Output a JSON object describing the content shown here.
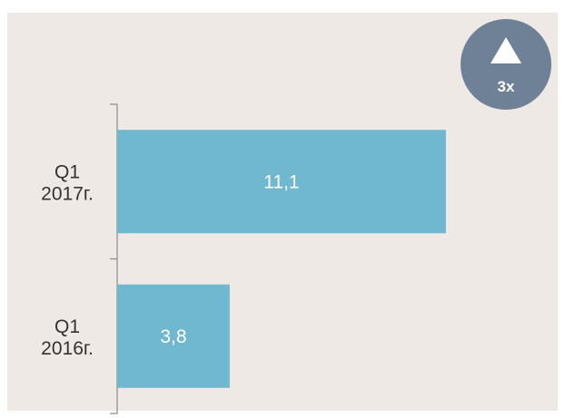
{
  "chart_data": {
    "type": "bar",
    "orientation": "horizontal",
    "categories": [
      "Q1 2017г.",
      "Q1 2016г."
    ],
    "category_lines": [
      [
        "Q1",
        "2017г."
      ],
      [
        "Q1",
        "2016г."
      ]
    ],
    "values": [
      11.1,
      3.8
    ],
    "value_labels": [
      "11,1",
      "3,8"
    ],
    "xlim": [
      0,
      14.6
    ],
    "grid": false,
    "title": "",
    "xlabel": "",
    "ylabel": ""
  },
  "badge": {
    "icon": "triangle-up-icon",
    "text": "3x"
  },
  "colors": {
    "background": "#efe9e5",
    "bar": "#6fb8cf",
    "badge": "#6f8196",
    "axis": "#8c8c8c",
    "label": "#333333"
  }
}
